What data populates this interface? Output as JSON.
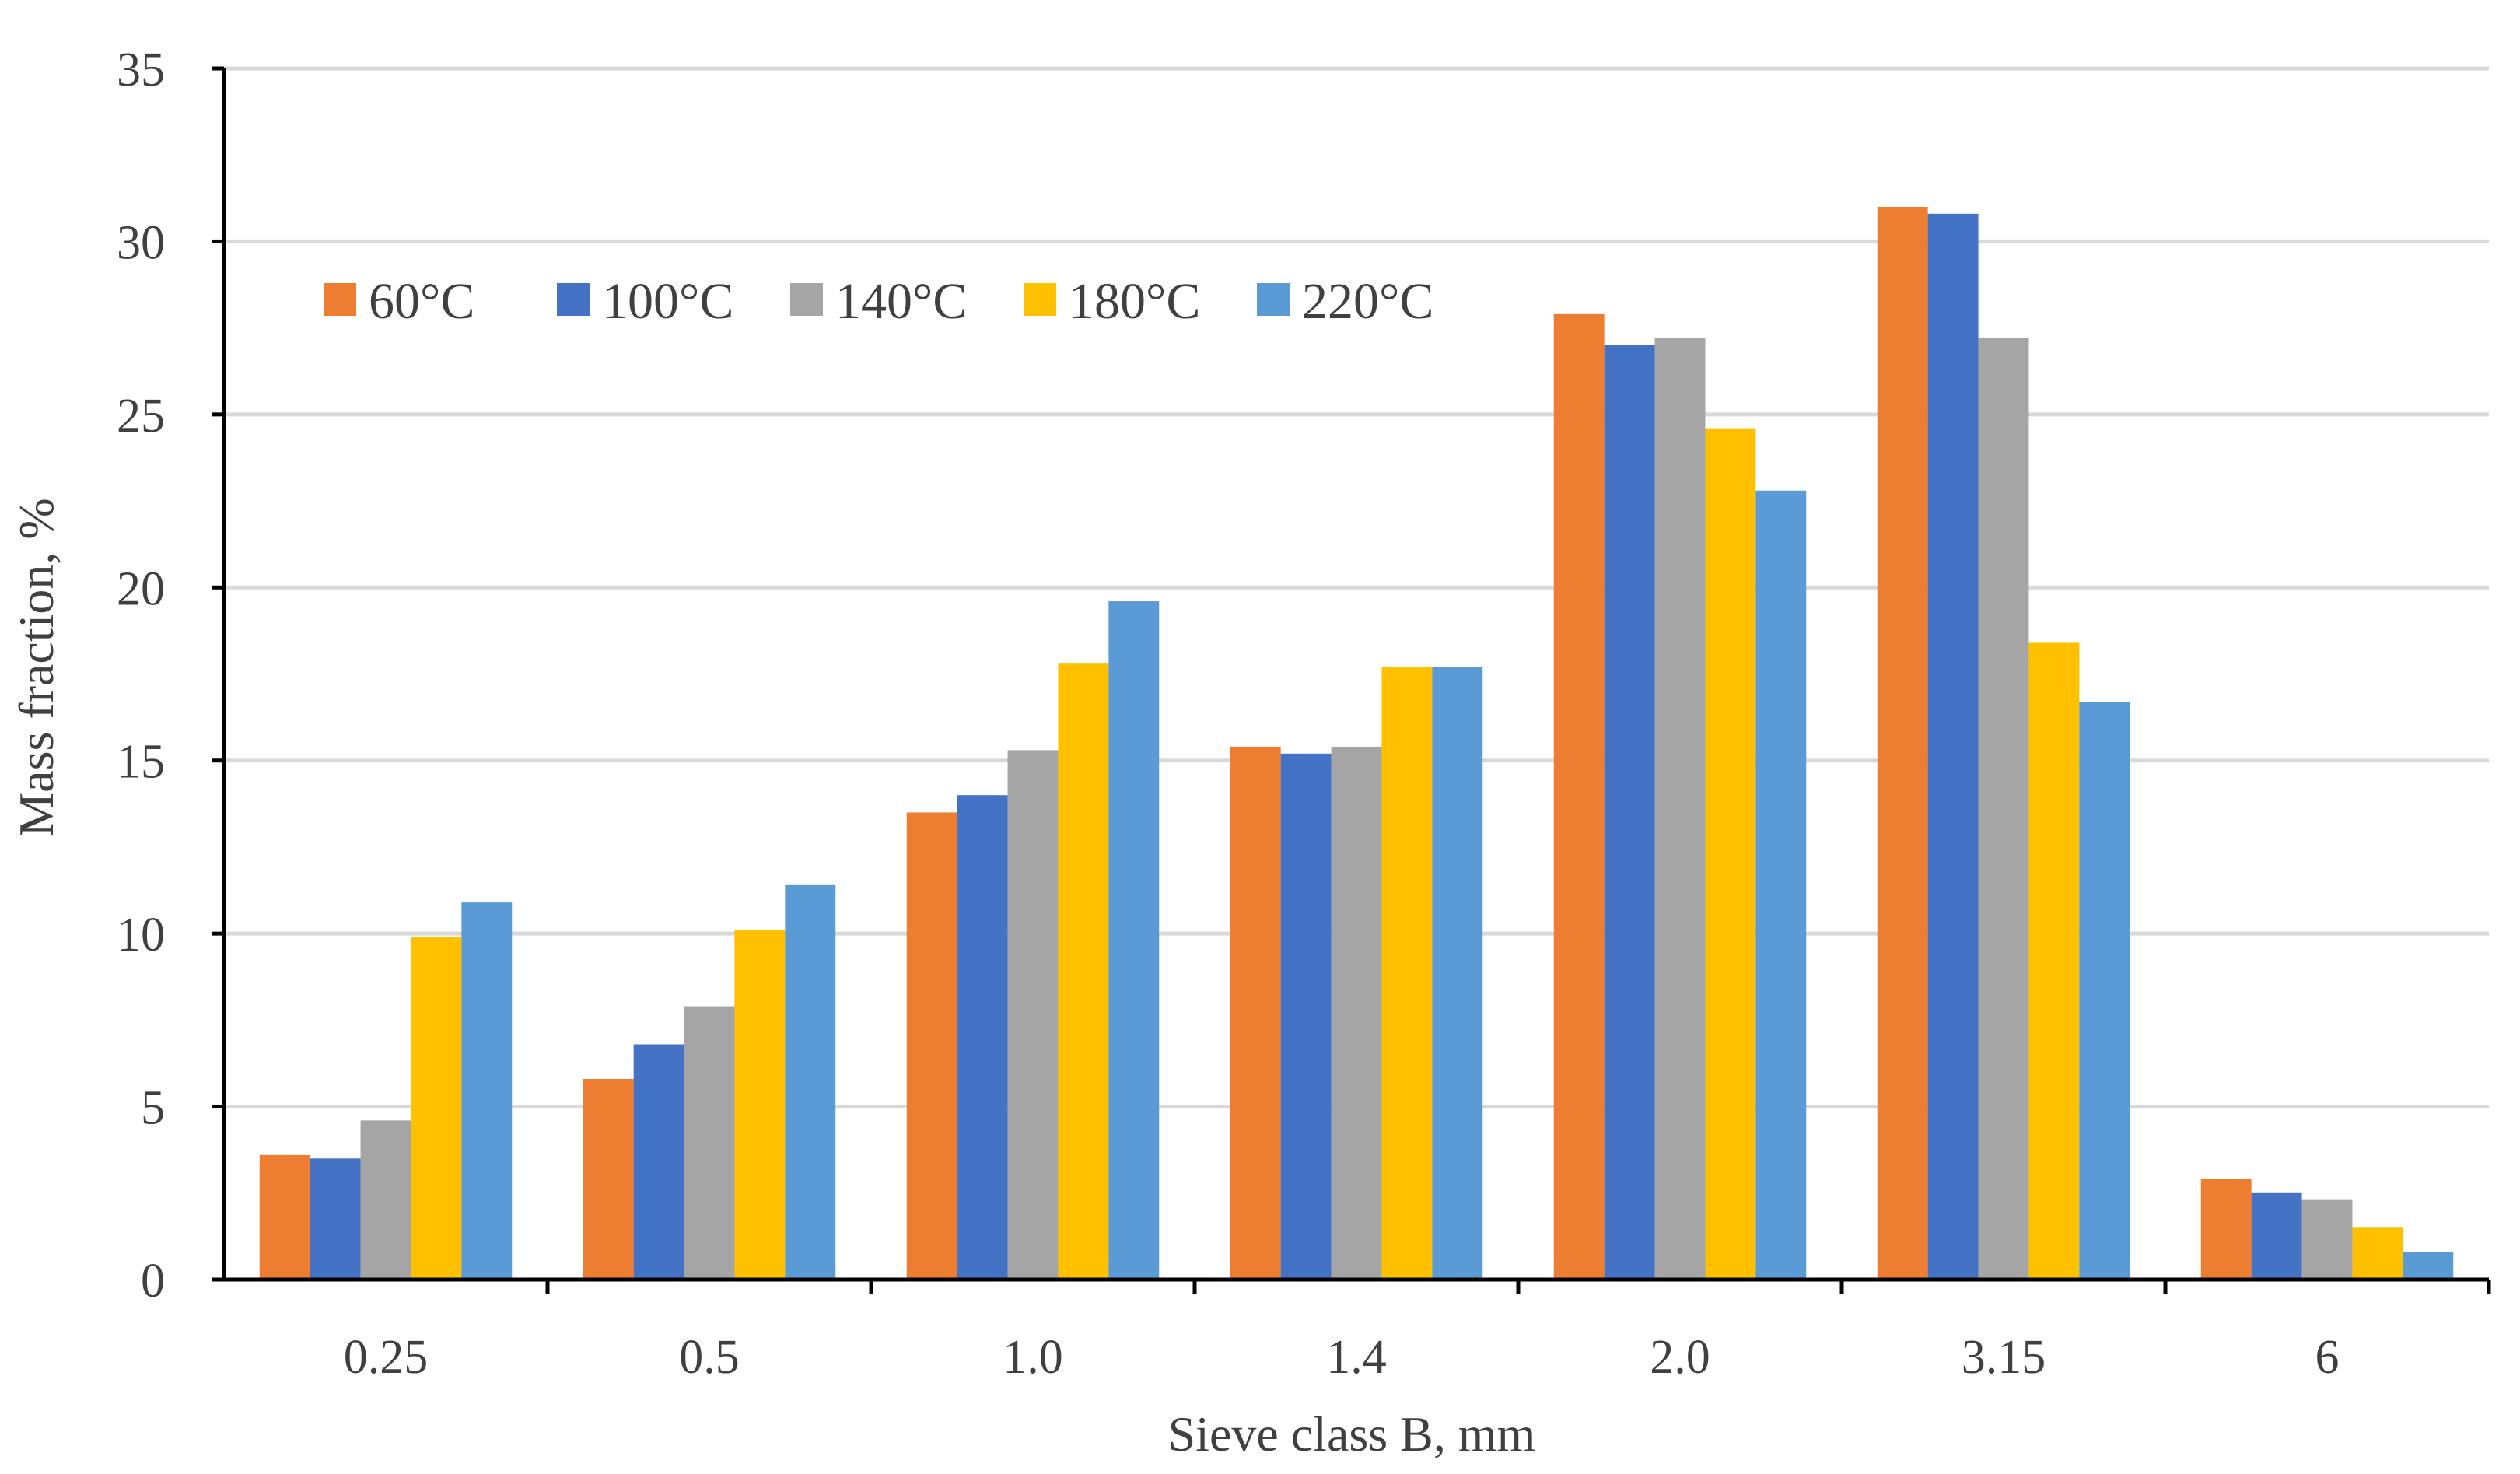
{
  "chart_data": {
    "type": "bar",
    "title": "",
    "xlabel": "Sieve class B, mm",
    "ylabel": "Mass fraction, %",
    "ylim": [
      0,
      35
    ],
    "y_ticks": [
      0,
      5,
      10,
      15,
      20,
      25,
      30,
      35
    ],
    "grid": true,
    "legend_position": "top-left",
    "categories": [
      "0.25",
      "0.5",
      "1.0",
      "1.4",
      "2.0",
      "3.15",
      "6"
    ],
    "series": [
      {
        "name": "60°C",
        "color": "#ED7D31",
        "values": [
          3.6,
          5.8,
          13.5,
          15.4,
          27.9,
          31.0,
          2.9
        ]
      },
      {
        "name": "100°C",
        "color": "#4472C4",
        "values": [
          3.5,
          6.8,
          14.0,
          15.2,
          27.0,
          30.8,
          2.5
        ]
      },
      {
        "name": "140°C",
        "color": "#A5A5A5",
        "values": [
          4.6,
          7.9,
          15.3,
          15.4,
          27.2,
          27.2,
          2.3
        ]
      },
      {
        "name": "180°C",
        "color": "#FFC000",
        "values": [
          9.9,
          10.1,
          17.8,
          17.7,
          24.6,
          18.4,
          1.5
        ]
      },
      {
        "name": "220°C",
        "color": "#5B9BD5",
        "values": [
          10.9,
          11.4,
          19.6,
          17.7,
          22.8,
          16.7,
          0.8
        ]
      }
    ],
    "colors": {
      "grid": "#D9D9D9",
      "axis": "#000000",
      "text": "#404040"
    }
  }
}
